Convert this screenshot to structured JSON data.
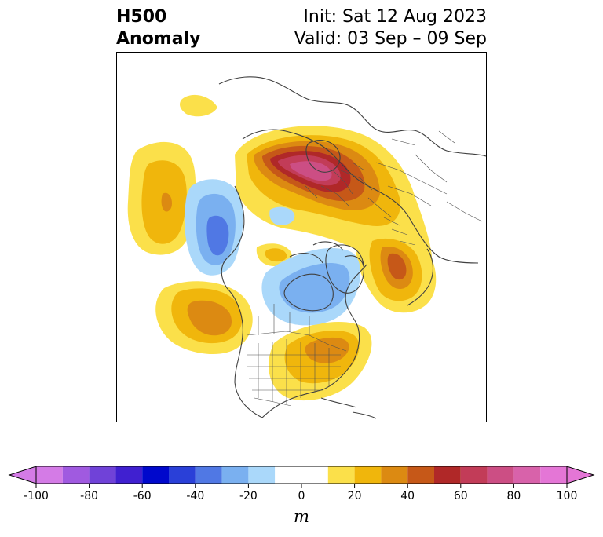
{
  "header": {
    "title_line1": "H500",
    "title_line2": "Anomaly",
    "init_text": "Init: Sat 12 Aug 2023",
    "valid_text": "Valid: 03 Sep – 09 Sep"
  },
  "colorbar": {
    "levels": [
      -100,
      -90,
      -80,
      -70,
      -60,
      -50,
      -40,
      -30,
      -20,
      -10,
      10,
      20,
      30,
      40,
      50,
      60,
      70,
      80,
      90,
      100
    ],
    "colors": [
      "#d47be6",
      "#a05ae0",
      "#7042d8",
      "#4020d0",
      "#0008cc",
      "#2a40d8",
      "#5078e4",
      "#7ab0f0",
      "#aad8fa",
      "#ffffff",
      "#fbe04a",
      "#f0b60c",
      "#dc8a12",
      "#c65818",
      "#b02828",
      "#c23c58",
      "#cc4e84",
      "#d862aa",
      "#e476d6"
    ],
    "tick_labels": [
      "-100",
      "-80",
      "-60",
      "-40",
      "-20",
      "0",
      "20",
      "40",
      "60",
      "80",
      "100"
    ],
    "tick_values": [
      -100,
      -80,
      -60,
      -40,
      -20,
      0,
      20,
      40,
      60,
      80,
      100
    ],
    "extend": "both",
    "unit": "m"
  },
  "map": {
    "projection": "polar-stereographic north",
    "features": [
      "coastlines",
      "country-borders",
      "us-state-borders"
    ],
    "anomaly_regions": [
      {
        "name": "northern-europe-ridge",
        "peak": 70
      },
      {
        "name": "eastern-north-america-ridge",
        "peak": 30
      },
      {
        "name": "central-pacific-ridge",
        "peak": 30
      },
      {
        "name": "eastern-pacific-ridge",
        "peak": 40
      },
      {
        "name": "siberian-ridge",
        "peak": 50
      },
      {
        "name": "aleutian-trough",
        "peak": -40
      },
      {
        "name": "canadian-arctic-trough",
        "peak": -30
      }
    ]
  }
}
